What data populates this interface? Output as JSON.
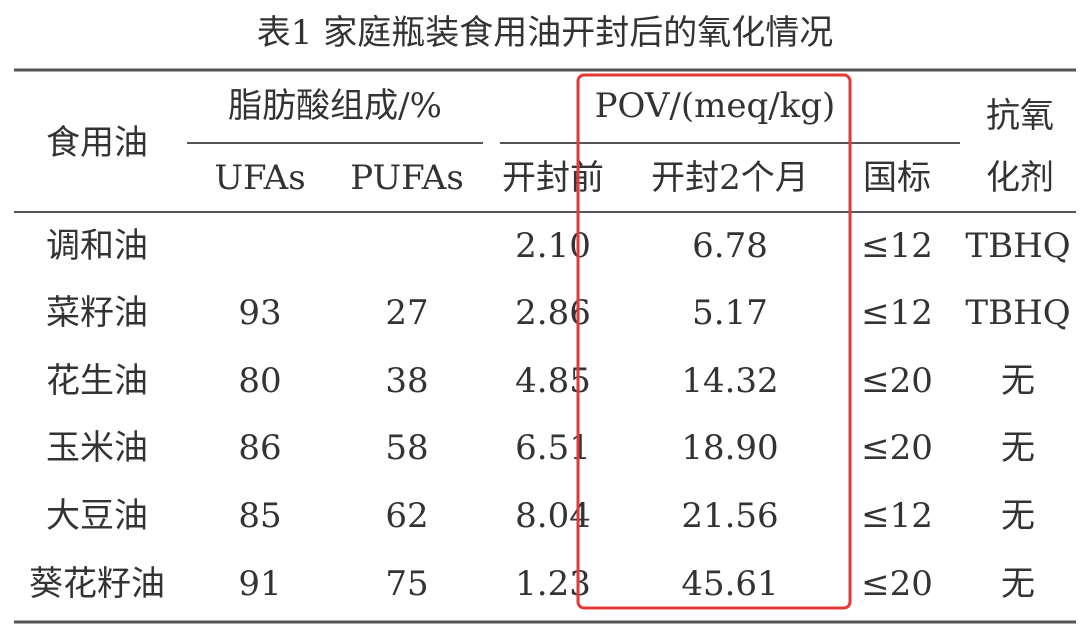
{
  "title": "表1  家庭瓶装食用油开封后的氧化情况",
  "header": {
    "oil": "食用油",
    "fatty_acid": "脂肪酸组成/%",
    "ufas": "UFAs",
    "pufas": "PUFAs",
    "pov": "POV/(meq/kg)",
    "before": "开封前",
    "after": "开封2个月",
    "standard": "国标",
    "antioxidant": "抗氧化剂"
  },
  "table": {
    "rows": [
      [
        "调和油",
        null,
        null,
        "2.10",
        "6.78",
        "≤12",
        "TBHQ"
      ],
      [
        "菜籽油",
        "93",
        "27",
        "2.86",
        "5.17",
        "≤12",
        "TBHQ"
      ],
      [
        "花生油",
        "80",
        "38",
        "4.85",
        "14.32",
        "≤20",
        "无"
      ],
      [
        "玉米油",
        "86",
        "58",
        "6.51",
        "18.90",
        "≤20",
        "无"
      ],
      [
        "大豆油",
        "85",
        "62",
        "8.04",
        "21.56",
        "≤12",
        "无"
      ],
      [
        "葵花籽油",
        "91",
        "75",
        "1.23",
        "45.61",
        "≤20",
        "无"
      ]
    ]
  }
}
